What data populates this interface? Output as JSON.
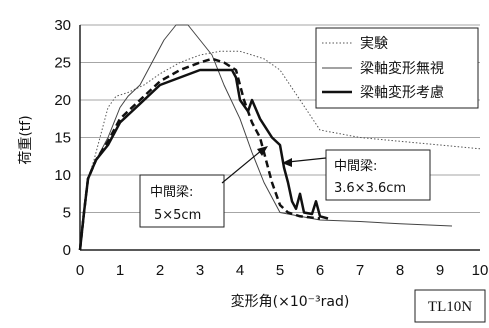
{
  "chart_data": {
    "type": "line",
    "xlabel": "変形角(×10⁻³rad)",
    "ylabel": "荷重(tf)",
    "xlim": [
      0,
      10
    ],
    "ylim": [
      0,
      30
    ],
    "x_ticks": [
      0,
      1,
      2,
      3,
      4,
      5,
      6,
      7,
      8,
      9,
      10
    ],
    "y_ticks": [
      0,
      5,
      10,
      15,
      20,
      25,
      30
    ],
    "grid": "horizontal",
    "legend_position": "top-right",
    "series": [
      {
        "name": "実験",
        "style": "dotted",
        "points": [
          [
            0,
            0
          ],
          [
            0.1,
            5
          ],
          [
            0.2,
            9.5
          ],
          [
            0.35,
            12
          ],
          [
            0.5,
            15
          ],
          [
            0.7,
            19
          ],
          [
            0.9,
            20.5
          ],
          [
            1.2,
            21
          ],
          [
            1.6,
            22
          ],
          [
            2.0,
            23.5
          ],
          [
            2.5,
            25
          ],
          [
            3.0,
            26
          ],
          [
            3.5,
            26.5
          ],
          [
            4.0,
            26.5
          ],
          [
            4.3,
            26
          ],
          [
            4.6,
            25.5
          ],
          [
            5.0,
            24
          ],
          [
            5.5,
            20
          ],
          [
            6.0,
            16
          ],
          [
            7.0,
            15
          ],
          [
            8.0,
            14.5
          ],
          [
            9.0,
            14
          ],
          [
            10.0,
            13.5
          ]
        ]
      },
      {
        "name": "梁軸変形無視",
        "style": "thin",
        "points": [
          [
            0,
            0
          ],
          [
            0.1,
            5
          ],
          [
            0.2,
            9.5
          ],
          [
            0.4,
            12
          ],
          [
            0.7,
            15
          ],
          [
            1.0,
            19
          ],
          [
            1.2,
            20.5
          ],
          [
            1.5,
            22
          ],
          [
            1.8,
            25
          ],
          [
            2.1,
            28
          ],
          [
            2.4,
            30
          ],
          [
            2.7,
            30
          ],
          [
            3.0,
            28
          ],
          [
            3.3,
            26
          ],
          [
            3.6,
            22
          ],
          [
            4.0,
            17.5
          ],
          [
            4.3,
            13
          ],
          [
            4.6,
            9
          ],
          [
            5.0,
            5
          ],
          [
            5.5,
            4.5
          ],
          [
            6.0,
            4
          ],
          [
            7.0,
            3.8
          ],
          [
            8.0,
            3.5
          ],
          [
            9.3,
            3.2
          ]
        ]
      },
      {
        "name": "梁軸変形考慮",
        "style": "thick",
        "points": [
          [
            0,
            0
          ],
          [
            0.1,
            5
          ],
          [
            0.2,
            9.5
          ],
          [
            0.4,
            12
          ],
          [
            0.7,
            14
          ],
          [
            1.0,
            17
          ],
          [
            1.5,
            19.5
          ],
          [
            2.0,
            22
          ],
          [
            2.5,
            23
          ],
          [
            3.0,
            24
          ],
          [
            3.5,
            24
          ],
          [
            3.8,
            24
          ],
          [
            3.9,
            23
          ],
          [
            4.0,
            20
          ],
          [
            4.2,
            18.5
          ],
          [
            4.3,
            20
          ],
          [
            4.5,
            17.5
          ],
          [
            4.8,
            15
          ],
          [
            5.0,
            14
          ],
          [
            5.1,
            11
          ],
          [
            5.2,
            9
          ],
          [
            5.3,
            6.5
          ],
          [
            5.4,
            5.5
          ],
          [
            5.5,
            7.5
          ],
          [
            5.6,
            5
          ],
          [
            5.8,
            4.8
          ],
          [
            5.9,
            6.5
          ],
          [
            6.0,
            4.5
          ],
          [
            6.2,
            4.2
          ]
        ]
      },
      {
        "name": "",
        "style": "dashed-thick",
        "points": [
          [
            0,
            0
          ],
          [
            0.1,
            5
          ],
          [
            0.2,
            9.5
          ],
          [
            0.4,
            12
          ],
          [
            0.7,
            14.5
          ],
          [
            1.0,
            17.5
          ],
          [
            1.5,
            20
          ],
          [
            2.0,
            22.5
          ],
          [
            2.5,
            24
          ],
          [
            3.0,
            25
          ],
          [
            3.3,
            25.5
          ],
          [
            3.6,
            25
          ],
          [
            3.9,
            24
          ],
          [
            4.1,
            20
          ],
          [
            4.3,
            17
          ],
          [
            4.5,
            15
          ],
          [
            4.6,
            13
          ],
          [
            4.8,
            9
          ],
          [
            5.0,
            6
          ],
          [
            5.2,
            5
          ],
          [
            5.5,
            4.5
          ],
          [
            6.0,
            4.2
          ]
        ]
      }
    ],
    "annotations": [
      {
        "line1": "中間梁:",
        "line2": "5×5cm"
      },
      {
        "line1": "中間梁:",
        "line2": "3.6×3.6cm"
      }
    ],
    "tag": "TL10N"
  }
}
